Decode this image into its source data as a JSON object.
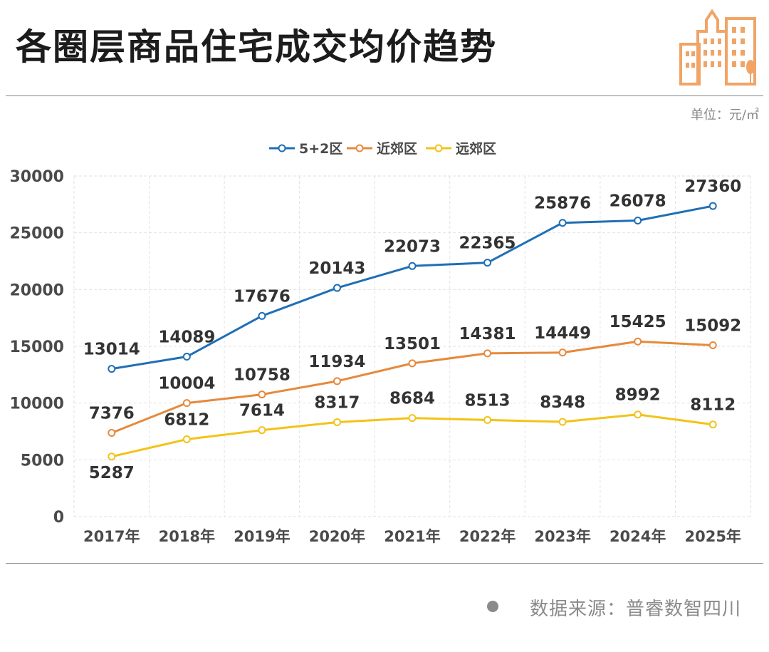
{
  "header": {
    "title": "各圈层商品住宅成交均价趋势"
  },
  "unit_label": "单位：元/㎡",
  "footer": {
    "source": "数据来源：普睿数智四川"
  },
  "colors": {
    "series_1": "#1f6fb5",
    "series_2": "#e58a3c",
    "series_3": "#f2c318",
    "logo": "#f0a466"
  },
  "icons": {
    "logo": "city-buildings-icon",
    "source_marker": "dot-icon"
  },
  "chart_data": {
    "type": "line",
    "title": "",
    "xlabel": "",
    "ylabel": "",
    "ylim": [
      0,
      30000
    ],
    "yticks": [
      "0",
      "5000",
      "10000",
      "15000",
      "20000",
      "25000",
      "30000"
    ],
    "grid": true,
    "legend_position": "top-center",
    "categories": [
      "2017年",
      "2018年",
      "2019年",
      "2020年",
      "2021年",
      "2022年",
      "2023年",
      "2024年",
      "2025年"
    ],
    "series": [
      {
        "name": "5+2区",
        "values": [
          13014,
          14089,
          17676,
          20143,
          22073,
          22365,
          25876,
          26078,
          27360
        ]
      },
      {
        "name": "近郊区",
        "values": [
          7376,
          10004,
          10758,
          11934,
          13501,
          14381,
          14449,
          15425,
          15092
        ]
      },
      {
        "name": "远郊区",
        "values": [
          5287,
          6812,
          7614,
          8317,
          8684,
          8513,
          8348,
          8992,
          8112
        ]
      }
    ]
  }
}
